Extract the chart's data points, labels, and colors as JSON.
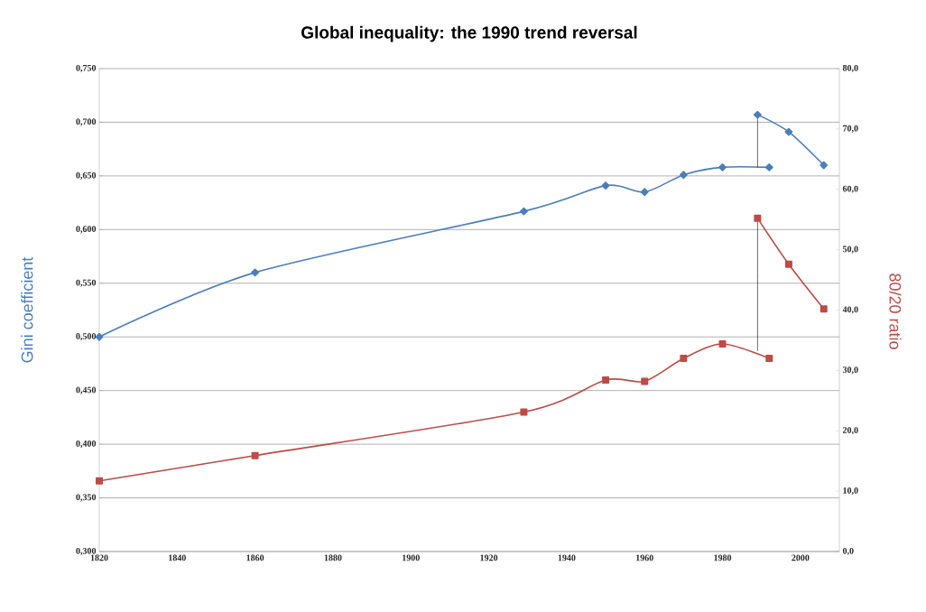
{
  "chart_data": {
    "type": "line",
    "title": "Global inequality: the 1990 trend reversal",
    "ylabel": "Gini coefficient",
    "y2label": "80/20 ratio",
    "xlim": [
      1820,
      2010
    ],
    "xticks": [
      1820,
      1840,
      1860,
      1880,
      1900,
      1920,
      1940,
      1960,
      1980,
      2000
    ],
    "ylim": [
      0.3,
      0.75
    ],
    "yticks": [
      {
        "value": 0.3,
        "label": "0,300"
      },
      {
        "value": 0.35,
        "label": "0,350"
      },
      {
        "value": 0.4,
        "label": "0,400"
      },
      {
        "value": 0.45,
        "label": "0,450"
      },
      {
        "value": 0.5,
        "label": "0,500"
      },
      {
        "value": 0.55,
        "label": "0,550"
      },
      {
        "value": 0.6,
        "label": "0,600"
      },
      {
        "value": 0.65,
        "label": "0,650"
      },
      {
        "value": 0.7,
        "label": "0,700"
      },
      {
        "value": 0.75,
        "label": "0,750"
      }
    ],
    "y2lim": [
      0,
      80
    ],
    "y2ticks": [
      {
        "value": 0,
        "label": "0,0"
      },
      {
        "value": 10,
        "label": "10,0"
      },
      {
        "value": 20,
        "label": "20,0"
      },
      {
        "value": 30,
        "label": "30,0"
      },
      {
        "value": 40,
        "label": "40,0"
      },
      {
        "value": 50,
        "label": "50,0"
      },
      {
        "value": 60,
        "label": "60,0"
      },
      {
        "value": 70,
        "label": "70,0"
      },
      {
        "value": 80,
        "label": "80,0"
      }
    ],
    "grid": "y",
    "series": [
      {
        "color": "#4a7ebb",
        "marker": "diamond",
        "x": [
          1820,
          1860,
          1929,
          1950,
          1960,
          1970,
          1980,
          1992
        ],
        "values": [
          0.5,
          0.56,
          0.617,
          0.641,
          0.635,
          0.651,
          0.658,
          0.658
        ]
      },
      {
        "color": "#4a7ebb",
        "marker": "diamond",
        "x": [
          1989,
          1997,
          2006
        ],
        "values": [
          0.707,
          0.691,
          0.66
        ]
      },
      {
        "color": "#be4b48",
        "marker": "square",
        "axis": "y2",
        "x": [
          1820,
          1860,
          1929,
          1950,
          1960,
          1970,
          1980,
          1992
        ],
        "values": [
          11.7,
          15.9,
          23.1,
          28.4,
          28.2,
          32.0,
          34.4,
          32.0
        ]
      },
      {
        "color": "#be4b48",
        "marker": "square",
        "axis": "y2",
        "x": [
          1989,
          1997,
          2006
        ],
        "values": [
          55.2,
          47.6,
          40.2
        ]
      },
      {
        "color": "#000000",
        "marker": "none",
        "x": [
          1989,
          1989
        ],
        "values": [
          0.707,
          0.658
        ]
      },
      {
        "color": "#000000",
        "marker": "none",
        "axis": "y2",
        "x": [
          1989,
          1989
        ],
        "values": [
          55.2,
          33.2
        ]
      }
    ]
  }
}
